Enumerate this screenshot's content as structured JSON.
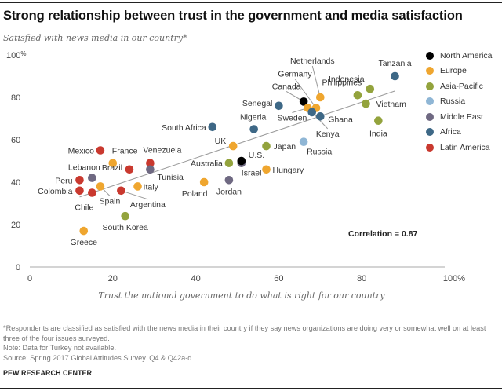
{
  "title": "Strong relationship between trust in the government and media satisfaction",
  "subtitle": "Satisfied with news media in our country*",
  "correlation_label": "Correlation = 0.87",
  "footnotes": [
    "*Respondents are classified as satisfied with the news media in their country if they say news organizations are doing very or somewhat well on at least three of the four issues surveyed.",
    "Note: Data for Turkey not available.",
    "Source: Spring 2017 Global Attitudes Survey. Q4 & Q42a-d."
  ],
  "source_org": "PEW RESEARCH CENTER",
  "region_colors": {
    "North America": "#000000",
    "Europe": "#EFA62F",
    "Asia-Pacific": "#93A33D",
    "Russia": "#8FB6D5",
    "Middle East": "#6F6982",
    "Africa": "#3E6886",
    "Latin America": "#C9392F"
  },
  "legend": [
    {
      "label": "North America",
      "color": "#000000"
    },
    {
      "label": "Europe",
      "color": "#EFA62F"
    },
    {
      "label": "Asia-Pacific",
      "color": "#93A33D"
    },
    {
      "label": "Russia",
      "color": "#8FB6D5"
    },
    {
      "label": "Middle East",
      "color": "#6F6982"
    },
    {
      "label": "Africa",
      "color": "#3E6886"
    },
    {
      "label": "Latin America",
      "color": "#C9392F"
    }
  ],
  "chart_data": {
    "type": "scatter",
    "title": "Strong relationship between trust in the government and media satisfaction",
    "xlabel": "Trust the national government to do what is right for our country",
    "ylabel": "Satisfied with news media in our country*",
    "xlim": [
      0,
      100
    ],
    "ylim": [
      0,
      100
    ],
    "x_ticks": [
      "0",
      "20",
      "40",
      "60",
      "80",
      "100%"
    ],
    "y_ticks": [
      "0",
      "20",
      "40",
      "60",
      "80",
      "100%"
    ],
    "grid": false,
    "legend_position": "top-right",
    "trendline": {
      "x": [
        12,
        88
      ],
      "y": [
        33,
        83
      ]
    },
    "correlation": 0.87,
    "points": [
      {
        "country": "Greece",
        "region": "Europe",
        "x": 13,
        "y": 17
      },
      {
        "country": "South Korea",
        "region": "Asia-Pacific",
        "x": 23,
        "y": 24
      },
      {
        "country": "Peru",
        "region": "Latin America",
        "x": 12,
        "y": 41
      },
      {
        "country": "Colombia",
        "region": "Latin America",
        "x": 12,
        "y": 36
      },
      {
        "country": "Chile",
        "region": "Latin America",
        "x": 15,
        "y": 35
      },
      {
        "country": "Spain",
        "region": "Europe",
        "x": 17,
        "y": 38
      },
      {
        "country": "Lebanon",
        "region": "Middle East",
        "x": 15,
        "y": 42
      },
      {
        "country": "Brazil",
        "region": "Latin America",
        "x": 24,
        "y": 46
      },
      {
        "country": "Argentina",
        "region": "Latin America",
        "x": 22,
        "y": 36
      },
      {
        "country": "Italy",
        "region": "Europe",
        "x": 26,
        "y": 38
      },
      {
        "country": "Mexico",
        "region": "Latin America",
        "x": 17,
        "y": 55
      },
      {
        "country": "France",
        "region": "Europe",
        "x": 20,
        "y": 49
      },
      {
        "country": "Venezuela",
        "region": "Latin America",
        "x": 29,
        "y": 49
      },
      {
        "country": "Tunisia",
        "region": "Middle East",
        "x": 29,
        "y": 46
      },
      {
        "country": "Poland",
        "region": "Europe",
        "x": 42,
        "y": 40
      },
      {
        "country": "Jordan",
        "region": "Middle East",
        "x": 48,
        "y": 41
      },
      {
        "country": "Australia",
        "region": "Asia-Pacific",
        "x": 48,
        "y": 49
      },
      {
        "country": "Israel",
        "region": "Middle East",
        "x": 51,
        "y": 49
      },
      {
        "country": "U.S.",
        "region": "North America",
        "x": 51,
        "y": 50
      },
      {
        "country": "UK",
        "region": "Europe",
        "x": 49,
        "y": 57
      },
      {
        "country": "Hungary",
        "region": "Europe",
        "x": 57,
        "y": 46
      },
      {
        "country": "Japan",
        "region": "Asia-Pacific",
        "x": 57,
        "y": 57
      },
      {
        "country": "South Africa",
        "region": "Africa",
        "x": 44,
        "y": 66
      },
      {
        "country": "Nigeria",
        "region": "Africa",
        "x": 54,
        "y": 65
      },
      {
        "country": "Russia",
        "region": "Russia",
        "x": 66,
        "y": 59
      },
      {
        "country": "Senegal",
        "region": "Africa",
        "x": 60,
        "y": 76
      },
      {
        "country": "Canada",
        "region": "North America",
        "x": 66,
        "y": 78
      },
      {
        "country": "Sweden",
        "region": "Europe",
        "x": 67,
        "y": 75
      },
      {
        "country": "Germany",
        "region": "Europe",
        "x": 69,
        "y": 75
      },
      {
        "country": "Kenya",
        "region": "Africa",
        "x": 68,
        "y": 73
      },
      {
        "country": "Ghana",
        "region": "Africa",
        "x": 70,
        "y": 71
      },
      {
        "country": "Netherlands",
        "region": "Europe",
        "x": 70,
        "y": 80
      },
      {
        "country": "Philippines",
        "region": "Asia-Pacific",
        "x": 79,
        "y": 81
      },
      {
        "country": "Indonesia",
        "region": "Asia-Pacific",
        "x": 82,
        "y": 84
      },
      {
        "country": "Vietnam",
        "region": "Asia-Pacific",
        "x": 81,
        "y": 77
      },
      {
        "country": "India",
        "region": "Asia-Pacific",
        "x": 84,
        "y": 69
      },
      {
        "country": "Tanzania",
        "region": "Africa",
        "x": 88,
        "y": 90
      }
    ]
  }
}
